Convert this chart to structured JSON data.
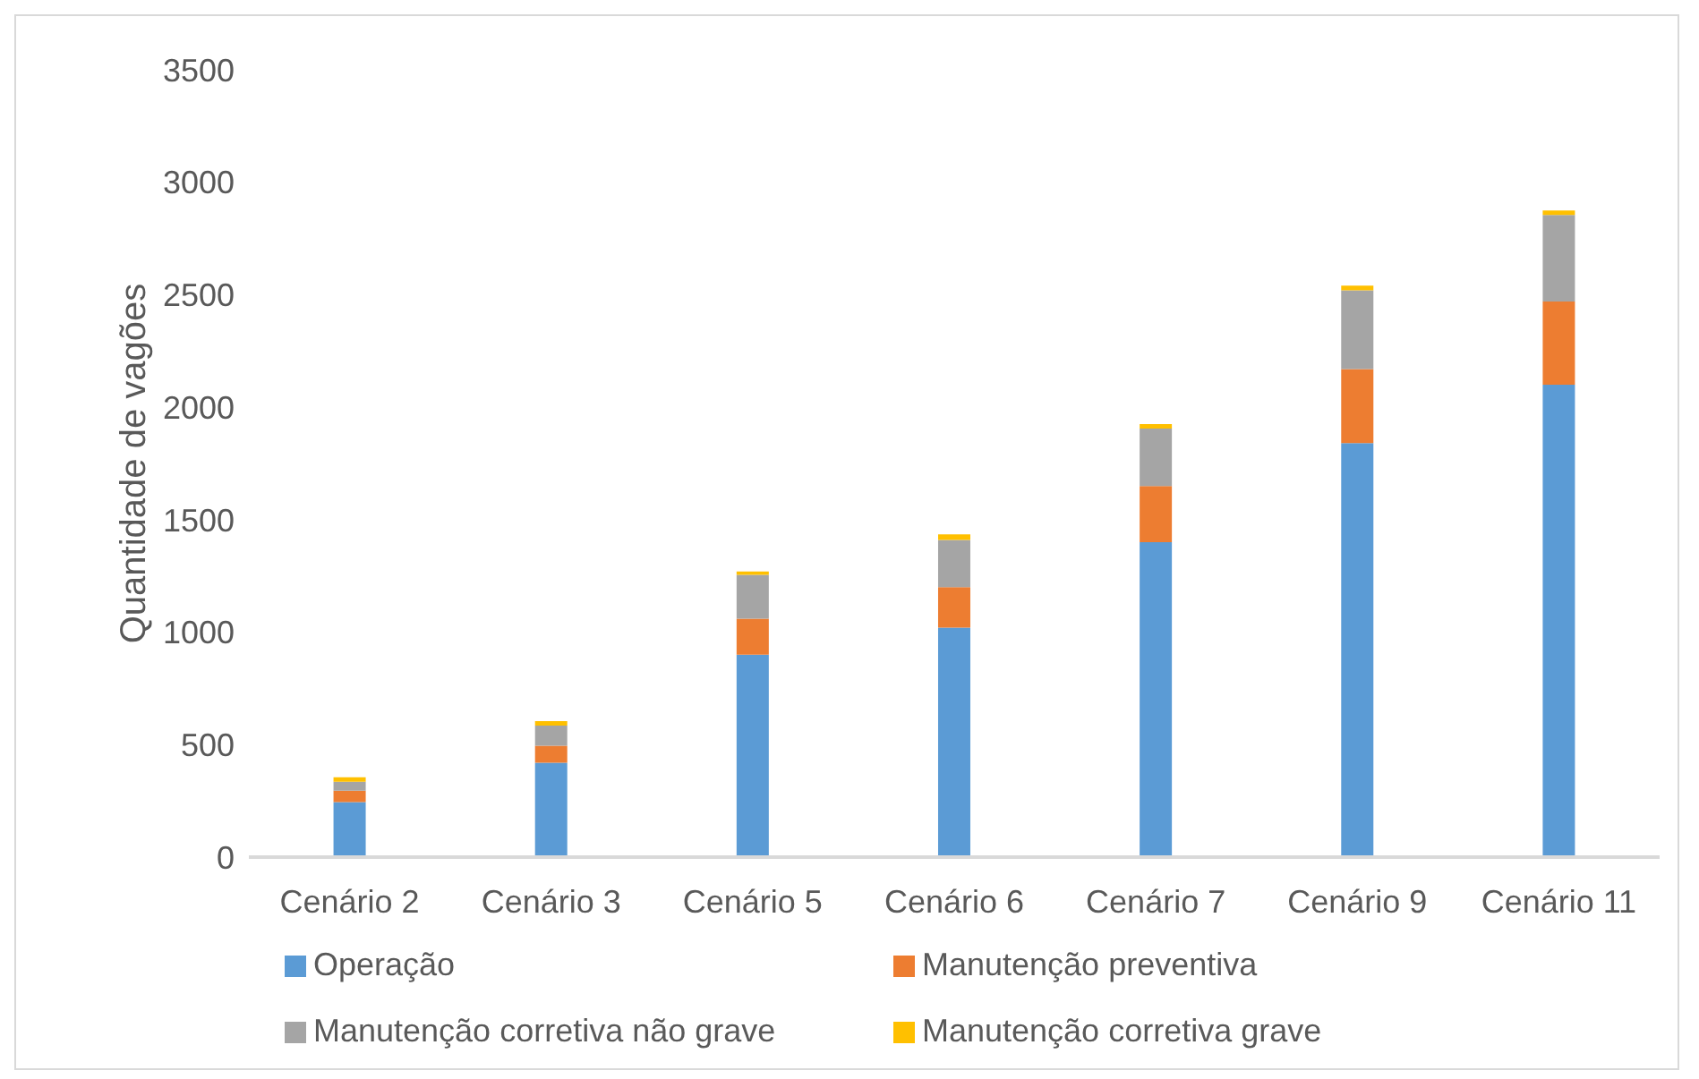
{
  "chart_data": {
    "type": "bar",
    "stacked": true,
    "ylabel": "Quantidade de vagões",
    "categories": [
      "Cenário 2",
      "Cenário 3",
      "Cenário 5",
      "Cenário 6",
      "Cenário 7",
      "Cenário 9",
      "Cenário 11"
    ],
    "series": [
      {
        "name": "Operação",
        "color": "#5b9bd5",
        "values": [
          245,
          420,
          900,
          1020,
          1400,
          1840,
          2100
        ]
      },
      {
        "name": "Manutenção preventiva",
        "color": "#ed7d31",
        "values": [
          50,
          75,
          160,
          180,
          250,
          330,
          370
        ]
      },
      {
        "name": "Manutenção corretiva não grave",
        "color": "#a5a5a5",
        "values": [
          40,
          90,
          195,
          210,
          255,
          350,
          385
        ]
      },
      {
        "name": "Manutenção corretiva grave",
        "color": "#ffc000",
        "values": [
          20,
          20,
          15,
          25,
          20,
          20,
          20
        ]
      }
    ],
    "ylim": [
      0,
      3500
    ],
    "yticks": [
      0,
      500,
      1000,
      1500,
      2000,
      2500,
      3000,
      3500
    ],
    "grid": false,
    "legend": "bottom"
  }
}
